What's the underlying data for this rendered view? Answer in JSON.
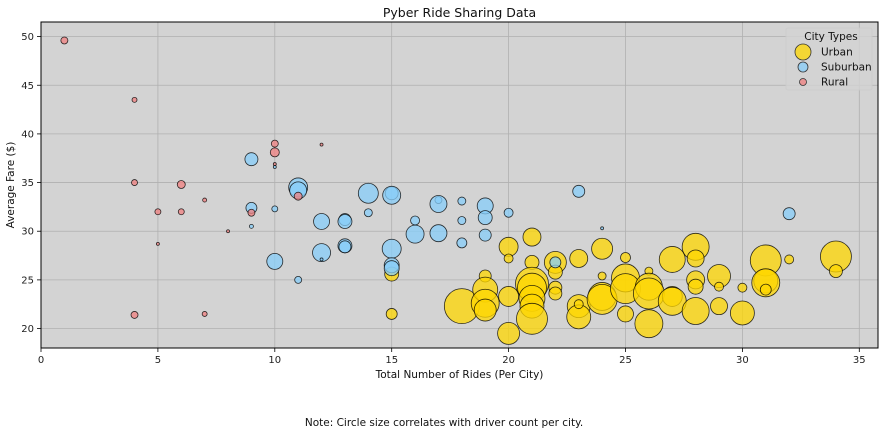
{
  "chart_data": {
    "type": "scatter",
    "title": "Pyber Ride Sharing Data",
    "xlabel": "Total Number of Rides (Per City)",
    "ylabel": "Average Fare ($)",
    "xlim": [
      0,
      35.8
    ],
    "ylim": [
      18,
      51.5
    ],
    "xticks": [
      0,
      5,
      10,
      15,
      20,
      25,
      30,
      35
    ],
    "yticks": [
      20,
      25,
      30,
      35,
      40,
      45,
      50
    ],
    "grid": true,
    "background": "#d3d3d3",
    "legend": {
      "title": "City Types",
      "placement": "top-right"
    },
    "note": "Note: Circle size correlates with driver count per city.",
    "series": [
      {
        "name": "Urban",
        "color": "#ffd700",
        "points": [
          {
            "x": 15,
            "y": 25.6,
            "size": 28
          },
          {
            "x": 15,
            "y": 21.5,
            "size": 22
          },
          {
            "x": 19,
            "y": 25.4,
            "size": 24
          },
          {
            "x": 18,
            "y": 22.3,
            "size": 70
          },
          {
            "x": 19,
            "y": 24.0,
            "size": 50
          },
          {
            "x": 19,
            "y": 22.6,
            "size": 56
          },
          {
            "x": 19,
            "y": 21.9,
            "size": 44
          },
          {
            "x": 20,
            "y": 28.4,
            "size": 38
          },
          {
            "x": 20,
            "y": 27.2,
            "size": 18
          },
          {
            "x": 20,
            "y": 23.3,
            "size": 40
          },
          {
            "x": 20,
            "y": 19.5,
            "size": 44
          },
          {
            "x": 21,
            "y": 29.4,
            "size": 36
          },
          {
            "x": 21,
            "y": 26.8,
            "size": 28
          },
          {
            "x": 21,
            "y": 24.6,
            "size": 66
          },
          {
            "x": 21,
            "y": 24.2,
            "size": 58
          },
          {
            "x": 21,
            "y": 23.1,
            "size": 52
          },
          {
            "x": 21,
            "y": 22.3,
            "size": 48
          },
          {
            "x": 21,
            "y": 21.0,
            "size": 62
          },
          {
            "x": 22,
            "y": 26.8,
            "size": 44
          },
          {
            "x": 22,
            "y": 25.8,
            "size": 28
          },
          {
            "x": 22,
            "y": 24.2,
            "size": 26
          },
          {
            "x": 22,
            "y": 23.6,
            "size": 26
          },
          {
            "x": 23,
            "y": 27.2,
            "size": 36
          },
          {
            "x": 23,
            "y": 22.3,
            "size": 46
          },
          {
            "x": 23,
            "y": 21.2,
            "size": 48
          },
          {
            "x": 23,
            "y": 22.5,
            "size": 18
          },
          {
            "x": 24,
            "y": 28.2,
            "size": 42
          },
          {
            "x": 24,
            "y": 25.4,
            "size": 16
          },
          {
            "x": 24,
            "y": 23.3,
            "size": 56
          },
          {
            "x": 24,
            "y": 23.0,
            "size": 60
          },
          {
            "x": 25,
            "y": 27.3,
            "size": 20
          },
          {
            "x": 25,
            "y": 25.2,
            "size": 56
          },
          {
            "x": 25,
            "y": 24.1,
            "size": 60
          },
          {
            "x": 25,
            "y": 21.5,
            "size": 32
          },
          {
            "x": 26,
            "y": 25.9,
            "size": 16
          },
          {
            "x": 26,
            "y": 24.3,
            "size": 54
          },
          {
            "x": 26,
            "y": 23.6,
            "size": 62
          },
          {
            "x": 26,
            "y": 20.5,
            "size": 56
          },
          {
            "x": 27,
            "y": 27.1,
            "size": 52
          },
          {
            "x": 27,
            "y": 23.3,
            "size": 40
          },
          {
            "x": 27,
            "y": 22.8,
            "size": 56
          },
          {
            "x": 28,
            "y": 28.4,
            "size": 54
          },
          {
            "x": 28,
            "y": 27.2,
            "size": 34
          },
          {
            "x": 28,
            "y": 25.0,
            "size": 36
          },
          {
            "x": 28,
            "y": 24.3,
            "size": 30
          },
          {
            "x": 28,
            "y": 21.8,
            "size": 54
          },
          {
            "x": 29,
            "y": 25.4,
            "size": 46
          },
          {
            "x": 29,
            "y": 24.3,
            "size": 18
          },
          {
            "x": 29,
            "y": 22.3,
            "size": 34
          },
          {
            "x": 30,
            "y": 24.2,
            "size": 18
          },
          {
            "x": 30,
            "y": 21.6,
            "size": 48
          },
          {
            "x": 31,
            "y": 27.0,
            "size": 62
          },
          {
            "x": 31,
            "y": 24.9,
            "size": 48
          },
          {
            "x": 31,
            "y": 24.7,
            "size": 56
          },
          {
            "x": 31,
            "y": 24.0,
            "size": 22
          },
          {
            "x": 32,
            "y": 27.1,
            "size": 18
          },
          {
            "x": 34,
            "y": 27.4,
            "size": 62
          },
          {
            "x": 34,
            "y": 25.9,
            "size": 26
          }
        ]
      },
      {
        "name": "Suburban",
        "color": "#87cefa",
        "points": [
          {
            "x": 9,
            "y": 37.4,
            "size": 26
          },
          {
            "x": 9,
            "y": 32.4,
            "size": 22
          },
          {
            "x": 9,
            "y": 30.5,
            "size": 8
          },
          {
            "x": 10,
            "y": 36.6,
            "size": 6
          },
          {
            "x": 10,
            "y": 32.3,
            "size": 12
          },
          {
            "x": 10,
            "y": 26.9,
            "size": 32
          },
          {
            "x": 11,
            "y": 34.5,
            "size": 38
          },
          {
            "x": 11,
            "y": 34.2,
            "size": 34
          },
          {
            "x": 11,
            "y": 25.0,
            "size": 14
          },
          {
            "x": 12,
            "y": 31.0,
            "size": 32
          },
          {
            "x": 12,
            "y": 27.8,
            "size": 36
          },
          {
            "x": 12,
            "y": 27.1,
            "size": 6
          },
          {
            "x": 13,
            "y": 31.2,
            "size": 24
          },
          {
            "x": 13,
            "y": 31.0,
            "size": 28
          },
          {
            "x": 13,
            "y": 28.5,
            "size": 28
          },
          {
            "x": 13,
            "y": 28.4,
            "size": 24
          },
          {
            "x": 14,
            "y": 33.9,
            "size": 40
          },
          {
            "x": 14,
            "y": 31.9,
            "size": 16
          },
          {
            "x": 15,
            "y": 33.9,
            "size": 26
          },
          {
            "x": 15,
            "y": 33.7,
            "size": 36
          },
          {
            "x": 15,
            "y": 28.2,
            "size": 38
          },
          {
            "x": 15,
            "y": 26.5,
            "size": 30
          },
          {
            "x": 15,
            "y": 26.2,
            "size": 30
          },
          {
            "x": 16,
            "y": 31.1,
            "size": 18
          },
          {
            "x": 16,
            "y": 29.7,
            "size": 36
          },
          {
            "x": 17,
            "y": 33.2,
            "size": 14
          },
          {
            "x": 17,
            "y": 32.8,
            "size": 34
          },
          {
            "x": 17,
            "y": 29.8,
            "size": 34
          },
          {
            "x": 18,
            "y": 33.1,
            "size": 16
          },
          {
            "x": 18,
            "y": 31.1,
            "size": 16
          },
          {
            "x": 18,
            "y": 28.8,
            "size": 20
          },
          {
            "x": 19,
            "y": 32.6,
            "size": 32
          },
          {
            "x": 19,
            "y": 31.4,
            "size": 28
          },
          {
            "x": 19,
            "y": 29.6,
            "size": 24
          },
          {
            "x": 20,
            "y": 31.9,
            "size": 18
          },
          {
            "x": 22,
            "y": 26.8,
            "size": 22
          },
          {
            "x": 23,
            "y": 34.1,
            "size": 24
          },
          {
            "x": 24,
            "y": 30.3,
            "size": 3
          },
          {
            "x": 32,
            "y": 31.8,
            "size": 24
          }
        ]
      },
      {
        "name": "Rural",
        "color": "#f08080",
        "points": [
          {
            "x": 1,
            "y": 49.6,
            "size": 14
          },
          {
            "x": 4,
            "y": 43.5,
            "size": 10
          },
          {
            "x": 4,
            "y": 35.0,
            "size": 12
          },
          {
            "x": 4,
            "y": 21.4,
            "size": 14
          },
          {
            "x": 5,
            "y": 32.0,
            "size": 12
          },
          {
            "x": 5,
            "y": 28.7,
            "size": 6
          },
          {
            "x": 6,
            "y": 34.8,
            "size": 16
          },
          {
            "x": 6,
            "y": 32.0,
            "size": 12
          },
          {
            "x": 7,
            "y": 33.2,
            "size": 8
          },
          {
            "x": 7,
            "y": 21.5,
            "size": 10
          },
          {
            "x": 8,
            "y": 30.0,
            "size": 6
          },
          {
            "x": 9,
            "y": 31.9,
            "size": 14
          },
          {
            "x": 10,
            "y": 39.0,
            "size": 14
          },
          {
            "x": 10,
            "y": 38.1,
            "size": 18
          },
          {
            "x": 10,
            "y": 36.9,
            "size": 4
          },
          {
            "x": 11,
            "y": 33.6,
            "size": 16
          },
          {
            "x": 12,
            "y": 38.9,
            "size": 6
          }
        ]
      }
    ]
  }
}
